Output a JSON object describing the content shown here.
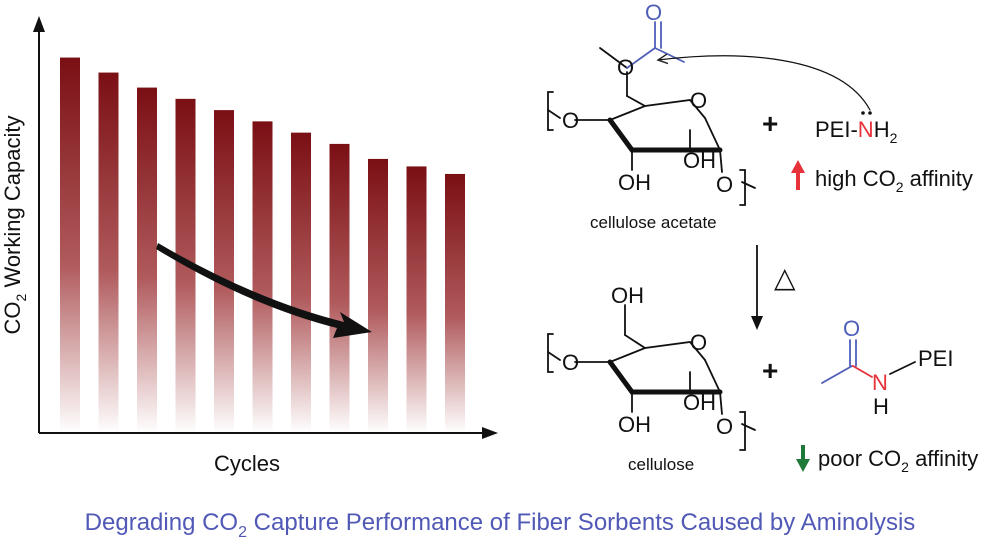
{
  "chart_data": {
    "type": "bar",
    "xlabel": "Cycles",
    "ylabel": {
      "prefix": "CO",
      "sub": "2",
      "suffix": " Working Capacity"
    },
    "values": [
      100,
      96,
      92,
      89,
      86,
      83,
      80,
      77,
      73,
      71,
      69
    ],
    "ylim": [
      0,
      110
    ],
    "bar_color": "#7a0f14",
    "trend": "decreasing"
  },
  "scheme": {
    "plus": "+",
    "top_reagent": {
      "prefix": "PEI-",
      "atom": "N",
      "suffix": "H",
      "sub": "2"
    },
    "high_affinity": {
      "prefix": "high CO",
      "sub": "2",
      "suffix": " affinity"
    },
    "reactant_name": "cellulose acetate",
    "heat_symbol": "△",
    "product_name": "cellulose",
    "amide_peI": "PEI",
    "poor_affinity": {
      "prefix": "poor CO",
      "sub": "2",
      "suffix": " affinity"
    },
    "atoms": {
      "O": "O",
      "OH": "OH",
      "N": "N",
      "H": "H"
    },
    "colors": {
      "carbonyl_blue": "#4f5fb8",
      "amine_red": "#e8323a",
      "up_arrow": "#e8323a",
      "down_arrow": "#1f7a3a"
    }
  },
  "caption": {
    "prefix": "Degrading CO",
    "sub": "2",
    "suffix": " Capture Performance of Fiber Sorbents Caused by Aminolysis"
  }
}
